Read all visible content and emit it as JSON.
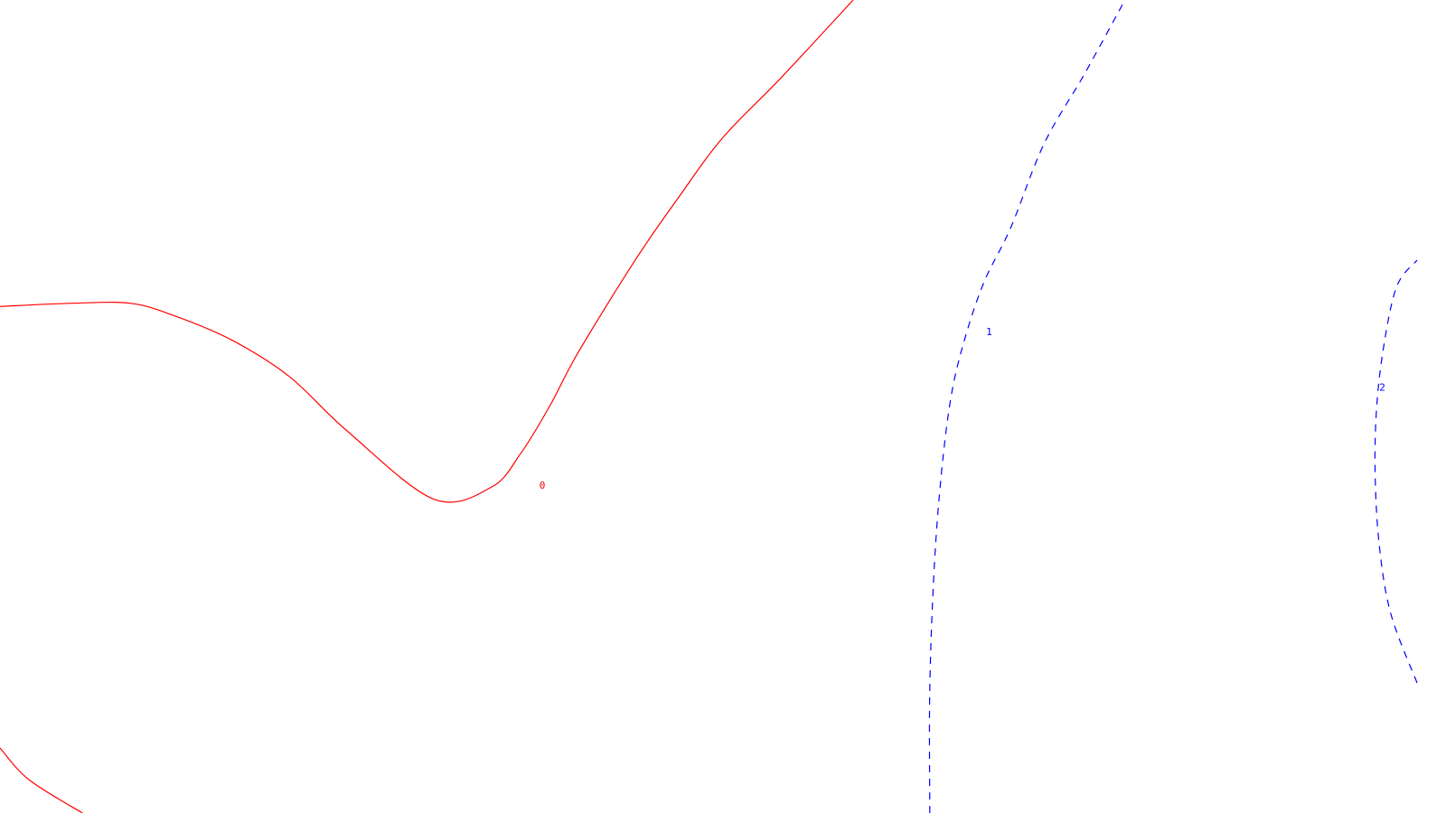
{
  "chart_data": {
    "type": "line",
    "title": "",
    "xlabel": "",
    "ylabel": "",
    "grid": false,
    "legend": "none",
    "series": [
      {
        "label": "0",
        "color": "#ff0000",
        "style": "solid",
        "segments": [
          {
            "x": [
              0.0,
              0.05,
              0.09,
              0.12,
              0.16,
              0.2,
              0.24,
              0.3,
              0.34,
              0.36,
              0.38,
              0.4,
              0.44,
              0.47,
              0.5,
              0.54,
              0.59
            ],
            "y": [
              0.623,
              0.627,
              0.627,
              0.612,
              0.582,
              0.537,
              0.47,
              0.386,
              0.401,
              0.442,
              0.5,
              0.567,
              0.682,
              0.759,
              0.831,
              0.904,
              1.0
            ]
          },
          {
            "x": [
              0.0,
              0.02,
              0.057
            ],
            "y": [
              0.08,
              0.041,
              0.0
            ]
          }
        ],
        "label_pos": {
          "x": 0.375,
          "y": 0.402
        }
      },
      {
        "label": "1",
        "color": "#0000ff",
        "style": "dashed",
        "segments": [
          {
            "x": [
              0.643,
              0.643,
              0.646,
              0.651,
              0.658,
              0.668,
              0.681,
              0.699,
              0.722,
              0.75,
              0.778
            ],
            "y": [
              0.0,
              0.153,
              0.299,
              0.417,
              0.515,
              0.588,
              0.655,
              0.72,
              0.823,
              0.909,
              1.0
            ]
          }
        ],
        "label_pos": {
          "x": 0.684,
          "y": 0.591
        }
      },
      {
        "label": "2",
        "color": "#0000ff",
        "style": "dashed",
        "segments": [
          {
            "x": [
              0.98,
              0.962,
              0.954,
              0.951,
              0.952,
              0.957,
              0.966,
              0.98
            ],
            "y": [
              0.16,
              0.244,
              0.327,
              0.416,
              0.498,
              0.575,
              0.648,
              0.68
            ]
          }
        ],
        "label_pos": {
          "x": 0.956,
          "y": 0.523
        }
      }
    ],
    "xlim": [
      0,
      1
    ],
    "ylim": [
      0,
      1
    ]
  }
}
